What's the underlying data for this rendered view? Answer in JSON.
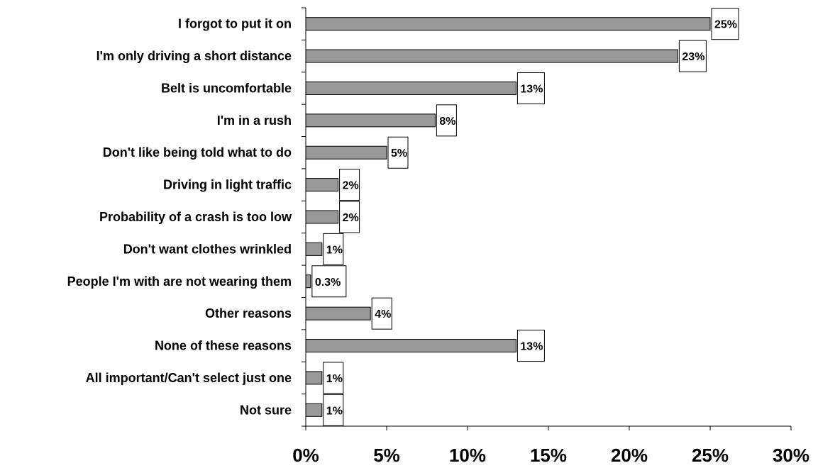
{
  "chart_data": {
    "type": "bar",
    "orientation": "horizontal",
    "categories": [
      "I forgot to put it on",
      "I'm only driving a short distance",
      "Belt is uncomfortable",
      "I'm in a rush",
      "Don't like being told what to do",
      "Driving in light traffic",
      "Probability of a crash is too low",
      "Don't want clothes wrinkled",
      "People I'm with are not wearing them",
      "Other reasons",
      "None of these reasons",
      "All important/Can't select just one",
      "Not sure"
    ],
    "values": [
      25,
      23,
      13,
      8,
      5,
      2,
      2,
      1,
      0.3,
      4,
      13,
      1,
      1
    ],
    "data_labels": [
      "25%",
      "23%",
      "13%",
      "8%",
      "5%",
      "2%",
      "2%",
      "1%",
      "0.3%",
      "4%",
      "13%",
      "1%",
      "1%"
    ],
    "xlim": [
      0,
      30
    ],
    "x_ticks": [
      0,
      5,
      10,
      15,
      20,
      25,
      30
    ],
    "x_tick_labels": [
      "0%",
      "5%",
      "10%",
      "15%",
      "20%",
      "25%",
      "30%"
    ],
    "title": "",
    "xlabel": "",
    "ylabel": "",
    "grid": false,
    "legend": "none",
    "bar_color": "#999999",
    "bar_edge_color": "#000000"
  }
}
